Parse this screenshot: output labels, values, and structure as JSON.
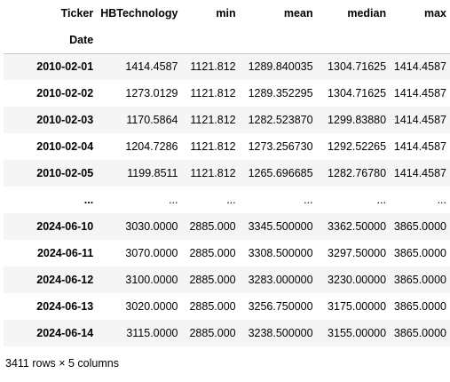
{
  "dataframe": {
    "columns_name": "Ticker",
    "index_name": "Date",
    "columns": [
      "HBTechnology",
      "min",
      "mean",
      "median",
      "max"
    ],
    "rows": [
      {
        "index": "2010-02-01",
        "values": [
          "1414.4587",
          "1121.812",
          "1289.840035",
          "1304.71625",
          "1414.4587"
        ]
      },
      {
        "index": "2010-02-02",
        "values": [
          "1273.0129",
          "1121.812",
          "1289.352295",
          "1304.71625",
          "1414.4587"
        ]
      },
      {
        "index": "2010-02-03",
        "values": [
          "1170.5864",
          "1121.812",
          "1282.523870",
          "1299.83880",
          "1414.4587"
        ]
      },
      {
        "index": "2010-02-04",
        "values": [
          "1204.7286",
          "1121.812",
          "1273.256730",
          "1292.52265",
          "1414.4587"
        ]
      },
      {
        "index": "2010-02-05",
        "values": [
          "1199.8511",
          "1121.812",
          "1265.696685",
          "1282.76780",
          "1414.4587"
        ]
      },
      {
        "index": "...",
        "values": [
          "...",
          "...",
          "...",
          "...",
          "..."
        ]
      },
      {
        "index": "2024-06-10",
        "values": [
          "3030.0000",
          "2885.000",
          "3345.500000",
          "3362.50000",
          "3865.0000"
        ]
      },
      {
        "index": "2024-06-11",
        "values": [
          "3070.0000",
          "2885.000",
          "3308.500000",
          "3297.50000",
          "3865.0000"
        ]
      },
      {
        "index": "2024-06-12",
        "values": [
          "3100.0000",
          "2885.000",
          "3283.000000",
          "3230.00000",
          "3865.0000"
        ]
      },
      {
        "index": "2024-06-13",
        "values": [
          "3020.0000",
          "2885.000",
          "3256.750000",
          "3175.00000",
          "3865.0000"
        ]
      },
      {
        "index": "2024-06-14",
        "values": [
          "3115.0000",
          "2885.000",
          "3238.500000",
          "3155.00000",
          "3865.0000"
        ]
      }
    ],
    "shape_text": "3411 rows × 5 columns"
  }
}
